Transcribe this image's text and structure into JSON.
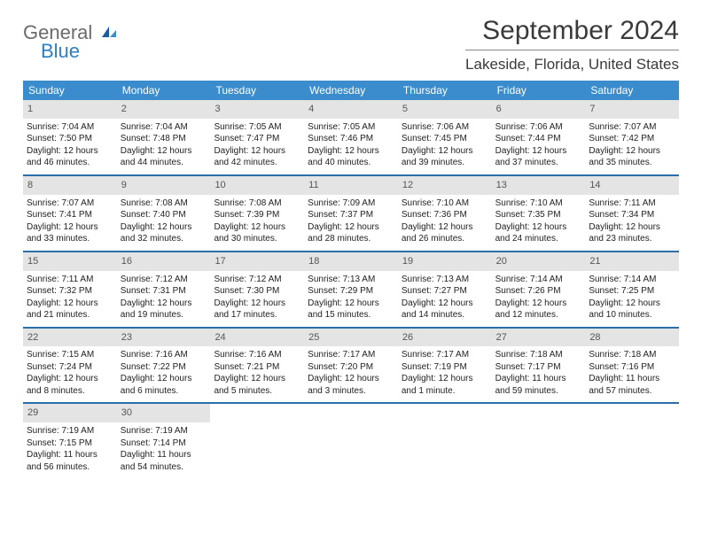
{
  "logo": {
    "line1": "General",
    "line2": "Blue"
  },
  "title": "September 2024",
  "location": "Lakeside, Florida, United States",
  "weekdays": [
    "Sunday",
    "Monday",
    "Tuesday",
    "Wednesday",
    "Thursday",
    "Friday",
    "Saturday"
  ],
  "colors": {
    "header_bg": "#3b8ccc",
    "header_text": "#ffffff",
    "daynum_bg": "#e4e4e4",
    "row_border": "#2b6fa8",
    "logo_gray": "#6b6b6b",
    "logo_blue": "#2b7fc2"
  },
  "layout": {
    "columns": 7,
    "title_fontsize": 30,
    "location_fontsize": 17,
    "weekday_fontsize": 12,
    "cell_fontsize": 10
  },
  "days": [
    {
      "n": "1",
      "sr": "Sunrise: 7:04 AM",
      "ss": "Sunset: 7:50 PM",
      "d1": "Daylight: 12 hours",
      "d2": "and 46 minutes."
    },
    {
      "n": "2",
      "sr": "Sunrise: 7:04 AM",
      "ss": "Sunset: 7:48 PM",
      "d1": "Daylight: 12 hours",
      "d2": "and 44 minutes."
    },
    {
      "n": "3",
      "sr": "Sunrise: 7:05 AM",
      "ss": "Sunset: 7:47 PM",
      "d1": "Daylight: 12 hours",
      "d2": "and 42 minutes."
    },
    {
      "n": "4",
      "sr": "Sunrise: 7:05 AM",
      "ss": "Sunset: 7:46 PM",
      "d1": "Daylight: 12 hours",
      "d2": "and 40 minutes."
    },
    {
      "n": "5",
      "sr": "Sunrise: 7:06 AM",
      "ss": "Sunset: 7:45 PM",
      "d1": "Daylight: 12 hours",
      "d2": "and 39 minutes."
    },
    {
      "n": "6",
      "sr": "Sunrise: 7:06 AM",
      "ss": "Sunset: 7:44 PM",
      "d1": "Daylight: 12 hours",
      "d2": "and 37 minutes."
    },
    {
      "n": "7",
      "sr": "Sunrise: 7:07 AM",
      "ss": "Sunset: 7:42 PM",
      "d1": "Daylight: 12 hours",
      "d2": "and 35 minutes."
    },
    {
      "n": "8",
      "sr": "Sunrise: 7:07 AM",
      "ss": "Sunset: 7:41 PM",
      "d1": "Daylight: 12 hours",
      "d2": "and 33 minutes."
    },
    {
      "n": "9",
      "sr": "Sunrise: 7:08 AM",
      "ss": "Sunset: 7:40 PM",
      "d1": "Daylight: 12 hours",
      "d2": "and 32 minutes."
    },
    {
      "n": "10",
      "sr": "Sunrise: 7:08 AM",
      "ss": "Sunset: 7:39 PM",
      "d1": "Daylight: 12 hours",
      "d2": "and 30 minutes."
    },
    {
      "n": "11",
      "sr": "Sunrise: 7:09 AM",
      "ss": "Sunset: 7:37 PM",
      "d1": "Daylight: 12 hours",
      "d2": "and 28 minutes."
    },
    {
      "n": "12",
      "sr": "Sunrise: 7:10 AM",
      "ss": "Sunset: 7:36 PM",
      "d1": "Daylight: 12 hours",
      "d2": "and 26 minutes."
    },
    {
      "n": "13",
      "sr": "Sunrise: 7:10 AM",
      "ss": "Sunset: 7:35 PM",
      "d1": "Daylight: 12 hours",
      "d2": "and 24 minutes."
    },
    {
      "n": "14",
      "sr": "Sunrise: 7:11 AM",
      "ss": "Sunset: 7:34 PM",
      "d1": "Daylight: 12 hours",
      "d2": "and 23 minutes."
    },
    {
      "n": "15",
      "sr": "Sunrise: 7:11 AM",
      "ss": "Sunset: 7:32 PM",
      "d1": "Daylight: 12 hours",
      "d2": "and 21 minutes."
    },
    {
      "n": "16",
      "sr": "Sunrise: 7:12 AM",
      "ss": "Sunset: 7:31 PM",
      "d1": "Daylight: 12 hours",
      "d2": "and 19 minutes."
    },
    {
      "n": "17",
      "sr": "Sunrise: 7:12 AM",
      "ss": "Sunset: 7:30 PM",
      "d1": "Daylight: 12 hours",
      "d2": "and 17 minutes."
    },
    {
      "n": "18",
      "sr": "Sunrise: 7:13 AM",
      "ss": "Sunset: 7:29 PM",
      "d1": "Daylight: 12 hours",
      "d2": "and 15 minutes."
    },
    {
      "n": "19",
      "sr": "Sunrise: 7:13 AM",
      "ss": "Sunset: 7:27 PM",
      "d1": "Daylight: 12 hours",
      "d2": "and 14 minutes."
    },
    {
      "n": "20",
      "sr": "Sunrise: 7:14 AM",
      "ss": "Sunset: 7:26 PM",
      "d1": "Daylight: 12 hours",
      "d2": "and 12 minutes."
    },
    {
      "n": "21",
      "sr": "Sunrise: 7:14 AM",
      "ss": "Sunset: 7:25 PM",
      "d1": "Daylight: 12 hours",
      "d2": "and 10 minutes."
    },
    {
      "n": "22",
      "sr": "Sunrise: 7:15 AM",
      "ss": "Sunset: 7:24 PM",
      "d1": "Daylight: 12 hours",
      "d2": "and 8 minutes."
    },
    {
      "n": "23",
      "sr": "Sunrise: 7:16 AM",
      "ss": "Sunset: 7:22 PM",
      "d1": "Daylight: 12 hours",
      "d2": "and 6 minutes."
    },
    {
      "n": "24",
      "sr": "Sunrise: 7:16 AM",
      "ss": "Sunset: 7:21 PM",
      "d1": "Daylight: 12 hours",
      "d2": "and 5 minutes."
    },
    {
      "n": "25",
      "sr": "Sunrise: 7:17 AM",
      "ss": "Sunset: 7:20 PM",
      "d1": "Daylight: 12 hours",
      "d2": "and 3 minutes."
    },
    {
      "n": "26",
      "sr": "Sunrise: 7:17 AM",
      "ss": "Sunset: 7:19 PM",
      "d1": "Daylight: 12 hours",
      "d2": "and 1 minute."
    },
    {
      "n": "27",
      "sr": "Sunrise: 7:18 AM",
      "ss": "Sunset: 7:17 PM",
      "d1": "Daylight: 11 hours",
      "d2": "and 59 minutes."
    },
    {
      "n": "28",
      "sr": "Sunrise: 7:18 AM",
      "ss": "Sunset: 7:16 PM",
      "d1": "Daylight: 11 hours",
      "d2": "and 57 minutes."
    },
    {
      "n": "29",
      "sr": "Sunrise: 7:19 AM",
      "ss": "Sunset: 7:15 PM",
      "d1": "Daylight: 11 hours",
      "d2": "and 56 minutes."
    },
    {
      "n": "30",
      "sr": "Sunrise: 7:19 AM",
      "ss": "Sunset: 7:14 PM",
      "d1": "Daylight: 11 hours",
      "d2": "and 54 minutes."
    }
  ]
}
